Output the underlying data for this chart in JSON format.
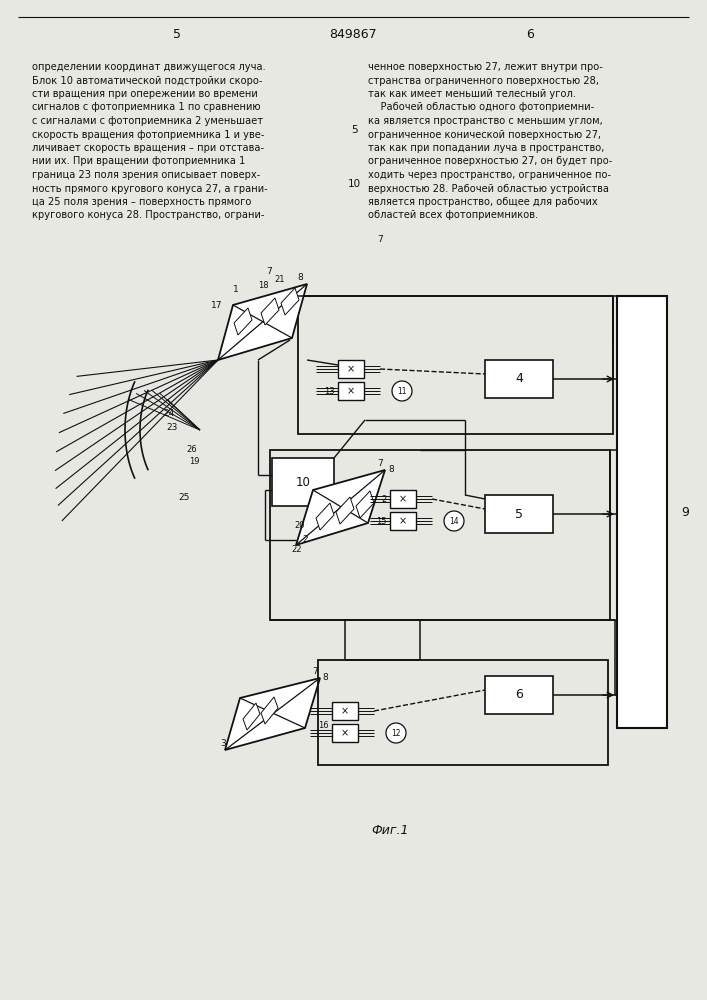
{
  "bg_color": "#e8e8e3",
  "line_color": "#111111",
  "text_color": "#111111",
  "page_left": "5",
  "page_center": "849867",
  "page_right": "6",
  "fig_caption": "Фиг.1",
  "text_col1_lines": [
    "определении координат движущегося луча.",
    "Блок 10 автоматической подстройки скоро-",
    "сти вращения при опережении во времени",
    "сигналов с фотоприемника 1 по сравнению",
    "с сигналами с фотоприемника 2 уменьшает",
    "скорость вращения фотоприемника 1 и уве-",
    "личивает скорость вращения – при отстава-",
    "нии их. При вращении фотоприемника 1",
    "граница 23 поля зрения описывает поверх-",
    "ность прямого кругового конуса 27, а грани-",
    "ца 25 поля зрения – поверхность прямого",
    "кругового конуса 28. Пространство, ограни-"
  ],
  "text_col2_lines": [
    "ченное поверхностью 27, лежит внутри про-",
    "странства ограниченного поверхностью 28,",
    "так как имеет меньший телесный угол.",
    "    Рабочей областью одного фотоприемни-",
    "ка является пространство с меньшим углом,",
    "ограниченное конической поверхностью 27,",
    "так как при попадании луча в пространство,",
    "ограниченное поверхностью 27, он будет про-",
    "ходить через пространство, ограниченное по-",
    "верхностью 28. Рабочей областью устройства",
    "является пространство, общее для рабочих",
    "областей всех фотоприемников."
  ]
}
